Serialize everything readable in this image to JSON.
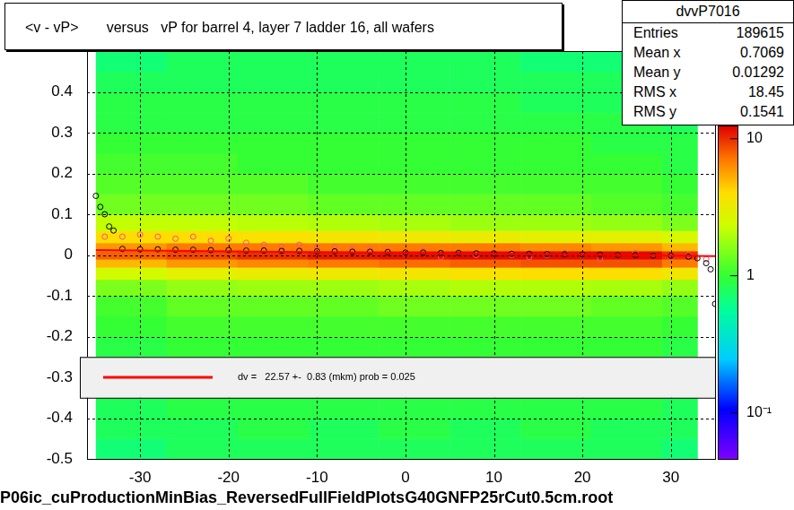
{
  "chart_data": {
    "type": "heatmap",
    "title": "<v - vP>       versus   vP for barrel 4, layer 7 ladder 16, all wafers",
    "footer": "P06ic_cuProductionMinBias_ReversedFullFieldPlotsG40GNFP25rCut0.5cm.root",
    "xlim": [
      -36,
      35
    ],
    "xticks": [
      -30,
      -20,
      -10,
      0,
      10,
      20,
      30
    ],
    "ylim": [
      -0.5,
      0.5
    ],
    "yticks": [
      -0.5,
      -0.4,
      -0.3,
      -0.2,
      -0.1,
      0,
      0.1,
      0.2,
      0.3,
      0.4
    ],
    "grid": true,
    "stats": {
      "title": "dvvP7016",
      "rows": [
        {
          "label": "Entries",
          "value": 189615
        },
        {
          "label": "Mean x",
          "value": 0.7069
        },
        {
          "label": "Mean y",
          "value": 0.01292
        },
        {
          "label": "RMS x",
          "value": 18.45
        },
        {
          "label": "RMS y",
          "value": 0.1541
        }
      ]
    },
    "heatmap": {
      "x_bins": [
        -35,
        -27,
        -19,
        -11,
        -3,
        5,
        13,
        21,
        29,
        33
      ],
      "y_bins": [
        -0.5,
        -0.45,
        -0.4,
        -0.35,
        -0.3,
        -0.25,
        -0.2,
        -0.15,
        -0.1,
        -0.06,
        -0.03,
        -0.01,
        0.01,
        0.03,
        0.06,
        0.1,
        0.15,
        0.2,
        0.25,
        0.3,
        0.35,
        0.4,
        0.45,
        0.5
      ],
      "cells": [
        [
          0.7,
          0.8,
          0.8,
          0.8,
          0.8,
          0.8,
          0.8,
          0.8,
          0.7
        ],
        [
          0.8,
          0.8,
          0.9,
          0.8,
          0.9,
          0.8,
          0.9,
          0.8,
          0.8
        ],
        [
          0.8,
          0.9,
          0.9,
          0.9,
          0.9,
          0.9,
          0.9,
          0.9,
          0.8
        ],
        [
          null,
          null,
          null,
          null,
          null,
          null,
          null,
          null,
          null
        ],
        [
          null,
          null,
          null,
          null,
          null,
          null,
          null,
          null,
          null
        ],
        [
          0.9,
          1,
          1,
          1,
          1,
          1,
          1,
          1,
          0.9
        ],
        [
          1,
          1.1,
          1.1,
          1.1,
          1.1,
          1.1,
          1.1,
          1.1,
          1
        ],
        [
          1.1,
          1.3,
          1.3,
          1.3,
          1.4,
          1.4,
          1.4,
          1.3,
          1.2
        ],
        [
          1.5,
          1.7,
          1.8,
          1.8,
          1.9,
          2,
          2,
          1.9,
          1.7
        ],
        [
          2.5,
          3,
          3.2,
          3.4,
          3.6,
          3.8,
          4,
          4,
          3.5
        ],
        [
          5,
          6,
          6.5,
          7,
          7.5,
          8,
          8.5,
          8.5,
          7
        ],
        [
          8,
          9,
          10,
          11,
          11.5,
          12,
          12,
          12,
          10
        ],
        [
          6,
          7,
          7,
          7,
          7,
          7,
          6.5,
          6,
          5
        ],
        [
          4,
          4,
          3.8,
          3.6,
          3.4,
          3.2,
          3,
          3,
          2.6
        ],
        [
          2.2,
          2.2,
          2.1,
          2,
          1.9,
          1.8,
          1.8,
          1.7,
          1.5
        ],
        [
          1.4,
          1.4,
          1.4,
          1.3,
          1.3,
          1.3,
          1.3,
          1.2,
          1.1
        ],
        [
          1.2,
          1.2,
          1.2,
          1.1,
          1.1,
          1.1,
          1.1,
          1.1,
          1
        ],
        [
          1.1,
          1.1,
          1,
          1,
          1,
          1,
          1,
          1,
          0.9
        ],
        [
          1,
          1,
          1,
          1,
          1,
          1,
          1,
          0.9,
          0.9
        ],
        [
          0.9,
          0.9,
          0.9,
          0.9,
          0.9,
          0.9,
          0.9,
          0.9,
          0.8
        ],
        [
          0.9,
          0.9,
          0.9,
          0.9,
          0.9,
          0.9,
          0.8,
          0.8,
          0.8
        ],
        [
          0.8,
          0.8,
          0.8,
          0.8,
          0.8,
          0.8,
          0.8,
          0.8,
          0.7
        ],
        [
          0.7,
          0.8,
          0.8,
          0.8,
          0.8,
          0.8,
          0.7,
          0.7,
          0.7
        ]
      ],
      "colorbar": {
        "range": [
          0.046,
          12.5
        ],
        "ticks": [
          {
            "value": 0.1,
            "label": "10⁻¹"
          },
          1,
          10
        ]
      }
    },
    "series": [
      {
        "type": "scatter",
        "marker": "circle",
        "color": "#000000",
        "x": [
          -35,
          -34.5,
          -34,
          -33.5,
          -33,
          -32,
          -30,
          -28,
          -26,
          -24,
          -22,
          -20,
          -18,
          -16,
          -14,
          -12,
          -10,
          -8,
          -6,
          -4,
          -2,
          0,
          2,
          4,
          6,
          8,
          10,
          12,
          14,
          16,
          18,
          20,
          22,
          24,
          26,
          28,
          30,
          32,
          33,
          34,
          34.5,
          35
        ],
        "values": [
          0.145,
          0.118,
          0.1,
          0.07,
          0.06,
          0.015,
          0.014,
          0.014,
          0.013,
          0.013,
          0.012,
          0.012,
          0.011,
          0.011,
          0.01,
          0.01,
          0.009,
          0.009,
          0.008,
          0.008,
          0.007,
          0.006,
          0.006,
          0.005,
          0.005,
          0.004,
          0.004,
          0.003,
          0.003,
          0.002,
          0.002,
          0.001,
          0.001,
          0,
          0,
          -0.001,
          -0.002,
          -0.004,
          -0.008,
          -0.02,
          -0.035,
          -0.12
        ]
      },
      {
        "type": "scatter",
        "marker": "circle",
        "color": "#ff4f7b",
        "x": [
          -34,
          -32,
          -30,
          -28,
          -26,
          -24,
          -22,
          -20,
          -18,
          -16,
          -14,
          -12,
          -10,
          -8,
          -6,
          -4,
          -2,
          0,
          2,
          4,
          6,
          8,
          10,
          12,
          14,
          16,
          18,
          20,
          22,
          24,
          26,
          28,
          30,
          32,
          34
        ],
        "values": [
          0.045,
          0.045,
          0.05,
          0.045,
          0.04,
          0.045,
          0.035,
          0.04,
          0.03,
          0.025,
          0.02,
          0.025,
          0.02,
          0.02,
          0.015,
          0.015,
          0.01,
          0.005,
          0.01,
          -0.005,
          0.005,
          0,
          0.005,
          0,
          -0.005,
          0,
          0.005,
          0,
          -0.01,
          0,
          0.005,
          0,
          -0.005,
          0,
          -0.01
        ]
      },
      {
        "type": "line",
        "line_style": "solid",
        "color": "#ff0000",
        "name": "dv =   22.57 +-  0.83 (mkm) prob = 0.025",
        "x": [
          -35,
          35
        ],
        "values": [
          0.012,
          -0.003
        ]
      }
    ]
  }
}
